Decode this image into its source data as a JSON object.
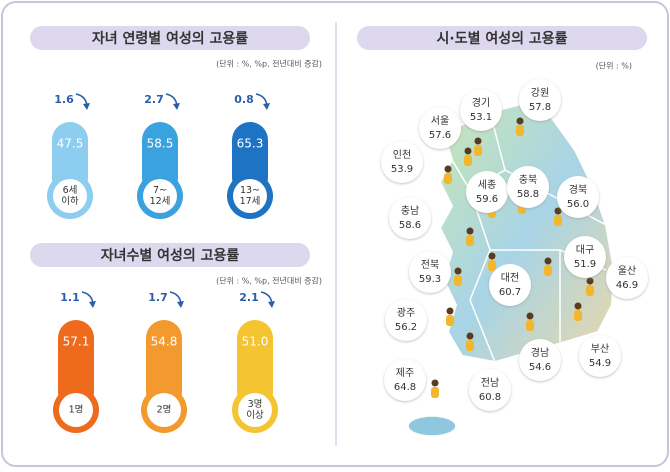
{
  "age_panel": {
    "title": "자녀 연령별 여성의 고용률",
    "unit": "(단위 : %, %p, 전년대비 증감)",
    "items": [
      {
        "label": [
          "6세",
          "이하"
        ],
        "rate": "47.5",
        "change": "1.6"
      },
      {
        "label": [
          "7~",
          "12세"
        ],
        "rate": "58.5",
        "change": "2.7"
      },
      {
        "label": [
          "13~",
          "17세"
        ],
        "rate": "65.3",
        "change": "0.8"
      }
    ]
  },
  "children_panel": {
    "title": "자녀수별 여성의 고용률",
    "unit": "(단위 : %, %p, 전년대비 증감)",
    "items": [
      {
        "label": [
          "1명"
        ],
        "rate": "57.1",
        "change": "1.1"
      },
      {
        "label": [
          "2명"
        ],
        "rate": "54.8",
        "change": "1.7"
      },
      {
        "label": [
          "3명",
          "이상"
        ],
        "rate": "51.0",
        "change": "2.1"
      }
    ]
  },
  "region_panel": {
    "title": "시·도별 여성의 고용률",
    "unit": "(단위 : %)",
    "regions": [
      {
        "name": "서울",
        "rate": "57.6"
      },
      {
        "name": "경기",
        "rate": "53.1"
      },
      {
        "name": "강원",
        "rate": "57.8"
      },
      {
        "name": "인천",
        "rate": "53.9"
      },
      {
        "name": "세종",
        "rate": "59.6"
      },
      {
        "name": "충북",
        "rate": "58.8"
      },
      {
        "name": "경북",
        "rate": "56.0"
      },
      {
        "name": "충남",
        "rate": "58.6"
      },
      {
        "name": "대구",
        "rate": "51.9"
      },
      {
        "name": "전북",
        "rate": "59.3"
      },
      {
        "name": "대전",
        "rate": "60.7"
      },
      {
        "name": "울산",
        "rate": "46.9"
      },
      {
        "name": "광주",
        "rate": "56.2"
      },
      {
        "name": "부산",
        "rate": "54.9"
      },
      {
        "name": "경남",
        "rate": "54.6"
      },
      {
        "name": "제주",
        "rate": "64.8"
      },
      {
        "name": "전남",
        "rate": "60.8"
      }
    ]
  }
}
